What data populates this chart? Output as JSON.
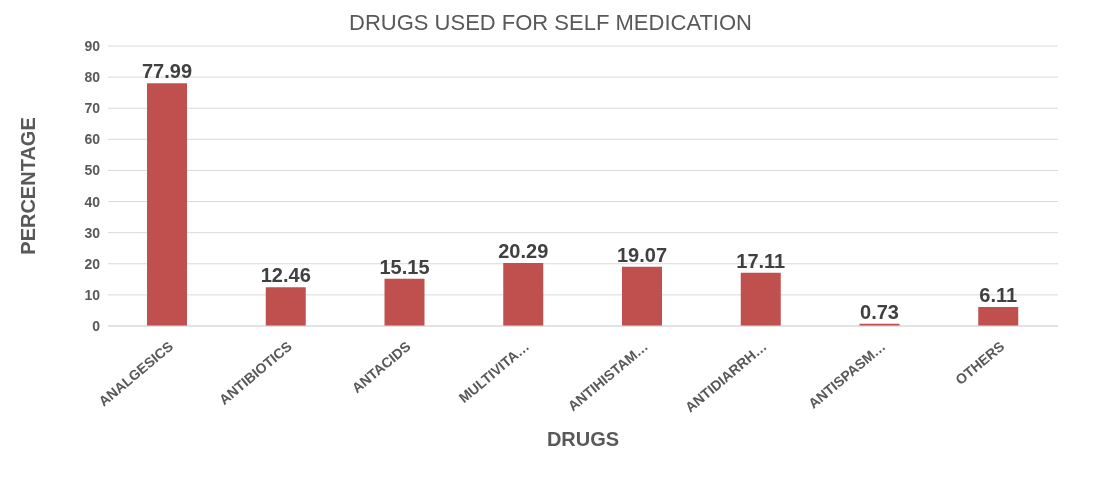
{
  "chart_data": {
    "type": "bar",
    "title": "DRUGS USED FOR SELF MEDICATION",
    "xlabel": "DRUGS",
    "ylabel": "PERCENTAGE",
    "categories": [
      "ANALGESICS",
      "ANTIBIOTICS",
      "ANTACIDS",
      "MULTIVITA…",
      "ANTIHISTAM…",
      "ANTIDIARRH…",
      "ANTISPASM…",
      "OTHERS"
    ],
    "values": [
      77.99,
      12.46,
      15.15,
      20.29,
      19.07,
      17.11,
      0.73,
      6.11
    ],
    "color": "#c0504d",
    "ylim": [
      0,
      90
    ],
    "yticks": [
      0,
      10,
      20,
      30,
      40,
      50,
      60,
      70,
      80,
      90
    ],
    "grid": "y",
    "data_labels": true
  }
}
